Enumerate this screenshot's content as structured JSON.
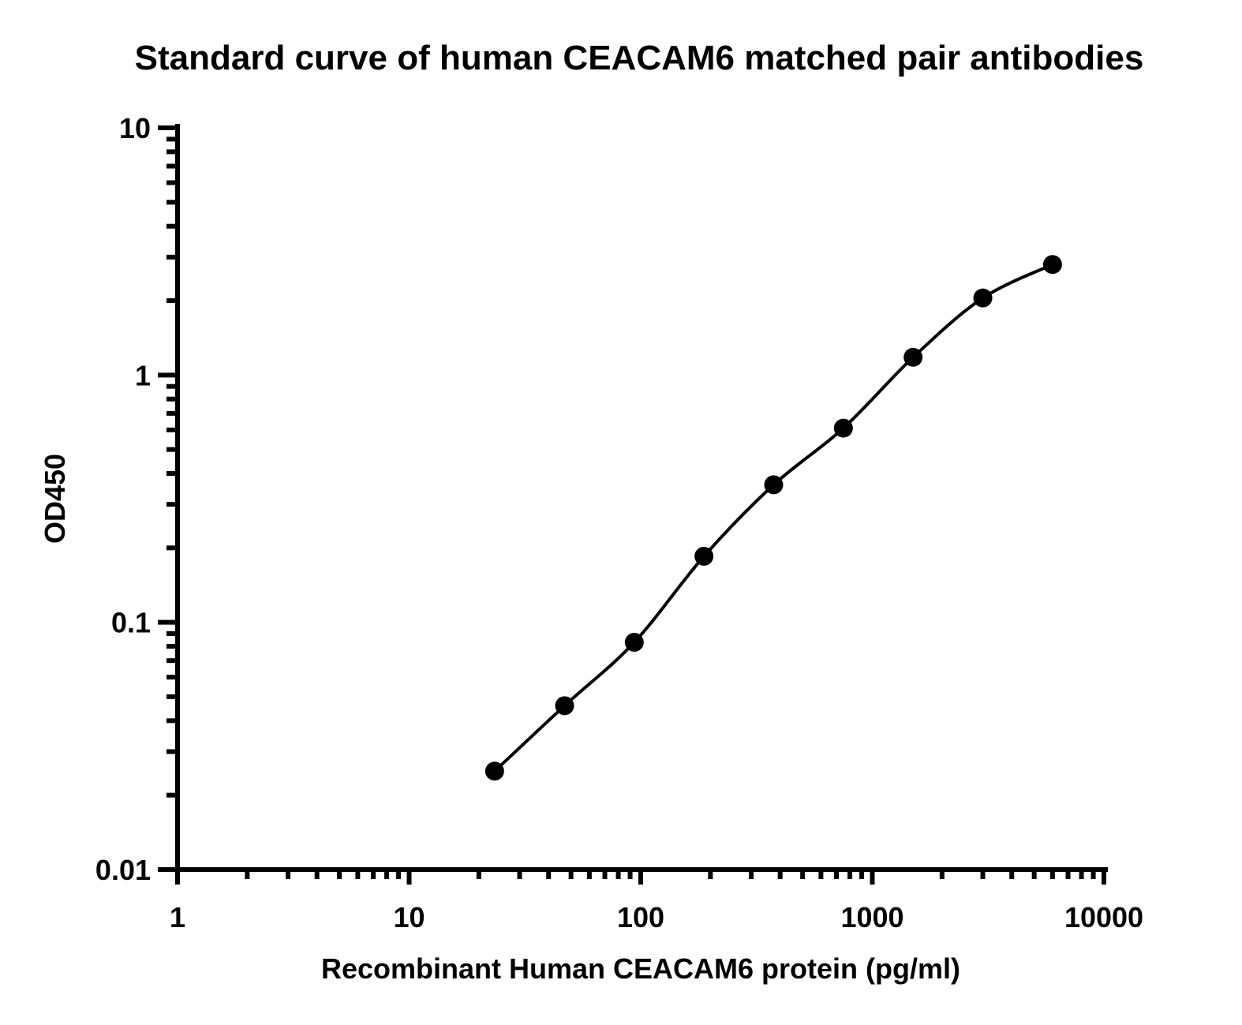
{
  "chart_data": {
    "type": "scatter",
    "title": "Standard curve of human CEACAM6 matched pair antibodies",
    "xlabel": "Recombinant Human CEACAM6 protein (pg/ml)",
    "ylabel": "OD450",
    "xscale": "log",
    "yscale": "log",
    "xlim": [
      1,
      10000
    ],
    "ylim": [
      0.01,
      10
    ],
    "xticks": [
      "1",
      "10",
      "100",
      "1000",
      "10000"
    ],
    "yticks": [
      "0.01",
      "0.1",
      "1",
      "10"
    ],
    "grid": false,
    "legend": "none",
    "series": [
      {
        "x": [
          23.4,
          46.9,
          93.8,
          187.5,
          375,
          750,
          1500,
          3000,
          6000
        ],
        "y": [
          0.025,
          0.046,
          0.083,
          0.185,
          0.36,
          0.61,
          1.18,
          2.05,
          2.8
        ],
        "fit": "4PL curve",
        "color": "#000000"
      }
    ]
  }
}
